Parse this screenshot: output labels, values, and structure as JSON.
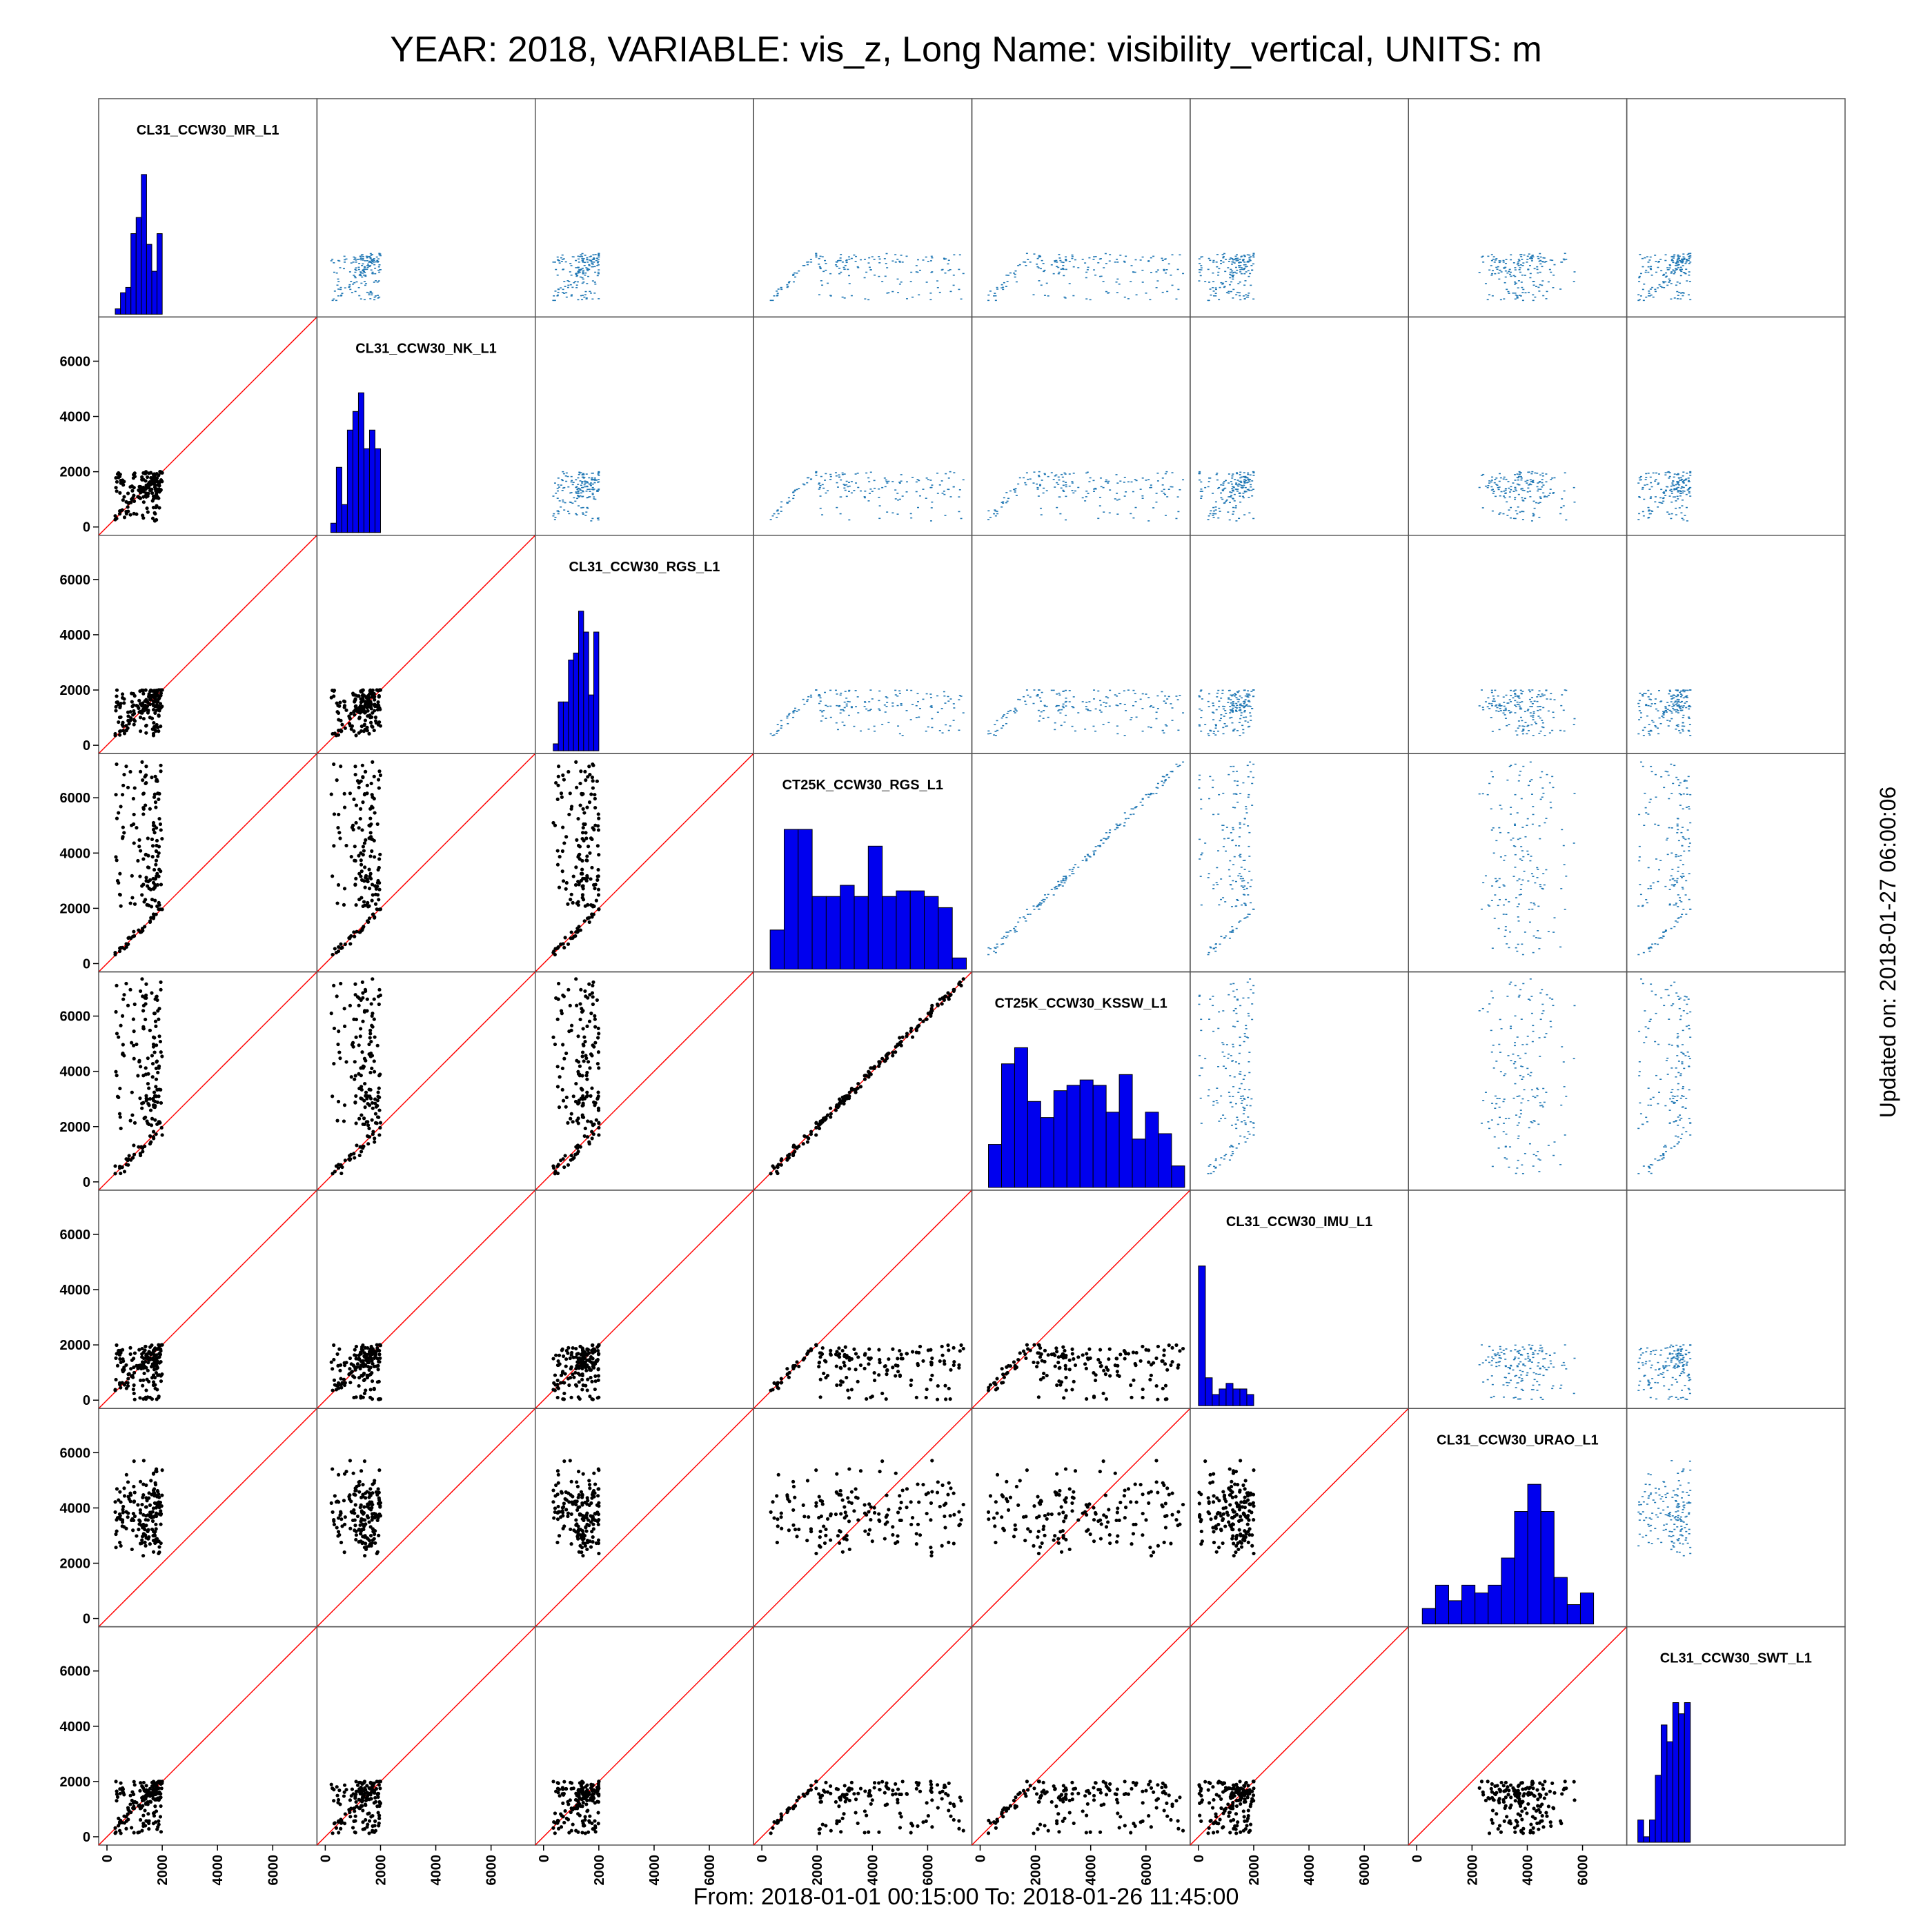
{
  "title": "YEAR: 2018, VARIABLE: vis_z, Long Name: visibility_vertical, UNITS: m",
  "footer": "From: 2018-01-01 00:15:00 To: 2018-01-26 11:45:00",
  "updated": "Updated on: 2018-01-27 06:00:06",
  "colors": {
    "histogram_fill": "#0000ee",
    "lower_points": "#000000",
    "upper_points": "#1f77b4",
    "identity_line": "#ff0000",
    "panel_border": "#555555"
  },
  "chart_data": {
    "type": "scatter",
    "title": "YEAR: 2018, VARIABLE: vis_z, Long Name: visibility_vertical, UNITS: m",
    "layout": "scatter-matrix",
    "variables": [
      "CL31_CCW30_MR_L1",
      "CL31_CCW30_NK_L1",
      "CL31_CCW30_RGS_L1",
      "CT25K_CCW30_RGS_L1",
      "CT25K_CCW30_KSSW_L1",
      "CL31_CCW30_IMU_L1",
      "CL31_CCW30_URAO_L1",
      "CL31_CCW30_SWT_L1"
    ],
    "diagonal": "histogram",
    "lower_triangle": "scatter with 1:1 reference line",
    "upper_triangle": "scatter (small blue marks)",
    "axis_range": [
      -300,
      7600
    ],
    "ticks": [
      0,
      2000,
      4000,
      6000
    ],
    "tick_labels": [
      "0",
      "2000",
      "4000",
      "6000"
    ],
    "grid": false,
    "legend": "none",
    "ranges": [
      [
        300,
        2000
      ],
      [
        200,
        2000
      ],
      [
        350,
        2000
      ],
      [
        300,
        7400
      ],
      [
        300,
        7400
      ],
      [
        0,
        2000
      ],
      [
        200,
        6400
      ],
      [
        100,
        2000
      ]
    ],
    "histograms": [
      {
        "variable": "CL31_CCW30_MR_L1",
        "min": 300,
        "max": 2000,
        "counts": [
          1,
          4,
          5,
          15,
          18,
          26,
          13,
          8,
          15
        ]
      },
      {
        "variable": "CL31_CCW30_NK_L1",
        "min": 200,
        "max": 2000,
        "counts": [
          1,
          7,
          3,
          11,
          13,
          15,
          9,
          11,
          9
        ]
      },
      {
        "variable": "CL31_CCW30_RGS_L1",
        "min": 350,
        "max": 2000,
        "counts": [
          1,
          7,
          7,
          13,
          14,
          20,
          17,
          8,
          17
        ]
      },
      {
        "variable": "CT25K_CCW30_RGS_L1",
        "min": 300,
        "max": 7400,
        "counts": [
          7,
          25,
          25,
          13,
          13,
          15,
          13,
          22,
          13,
          14,
          14,
          13,
          11,
          2
        ]
      },
      {
        "variable": "CT25K_CCW30_KSSW_L1",
        "min": 300,
        "max": 7400,
        "counts": [
          8,
          23,
          26,
          16,
          13,
          18,
          19,
          20,
          19,
          14,
          21,
          9,
          14,
          10,
          4
        ]
      },
      {
        "variable": "CL31_CCW30_IMU_L1",
        "min": 0,
        "max": 2000,
        "counts": [
          25,
          5,
          2,
          3,
          4,
          3,
          3,
          2
        ]
      },
      {
        "variable": "CL31_CCW30_URAO_L1",
        "min": 200,
        "max": 6400,
        "counts": [
          4,
          10,
          6,
          10,
          8,
          10,
          17,
          29,
          36,
          29,
          12,
          5,
          8
        ]
      },
      {
        "variable": "CL31_CCW30_SWT_L1",
        "min": 100,
        "max": 2000,
        "counts": [
          4,
          1,
          4,
          12,
          21,
          18,
          25,
          23,
          25
        ]
      }
    ]
  }
}
